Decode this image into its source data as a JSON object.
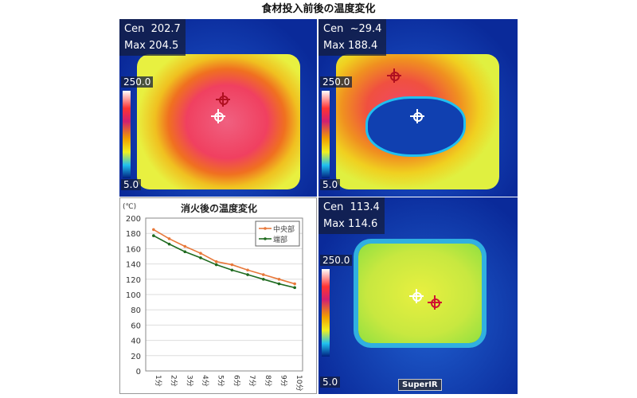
{
  "title": "食材投入前後の温度変化",
  "thermal": [
    {
      "cen_label": "Cen",
      "cen": "202.7",
      "max_label": "Max",
      "max": "204.5",
      "scale_max": "250.0",
      "scale_min": "5.0"
    },
    {
      "cen_label": "Cen",
      "cen": "~29.4",
      "max_label": "Max",
      "max": "188.4",
      "scale_max": "250.0",
      "scale_min": "5.0"
    },
    {
      "cen_label": "Cen",
      "cen": "113.4",
      "max_label": "Max",
      "max": "114.6",
      "scale_max": "250.0",
      "scale_min": "5.0",
      "logo": "SuperIR"
    }
  ],
  "chart_data": {
    "type": "line",
    "title": "消火後の温度変化",
    "ylabel": "(℃)",
    "xlabel": "",
    "categories": [
      "1分",
      "2分",
      "3分",
      "4分",
      "5分",
      "6分",
      "7分",
      "8分",
      "9分",
      "10分"
    ],
    "ylim": [
      0,
      200
    ],
    "yticks": [
      0,
      20,
      40,
      60,
      80,
      100,
      120,
      140,
      160,
      180,
      200
    ],
    "grid": true,
    "legend": "top-right",
    "series": [
      {
        "name": "中央部",
        "color": "#e8783a",
        "values": [
          185,
          173,
          163,
          154,
          143,
          139,
          132,
          126,
          120,
          114
        ]
      },
      {
        "name": "端部",
        "color": "#1e6a1e",
        "values": [
          177,
          166,
          156,
          148,
          139,
          132,
          126,
          120,
          114,
          109
        ]
      }
    ]
  }
}
